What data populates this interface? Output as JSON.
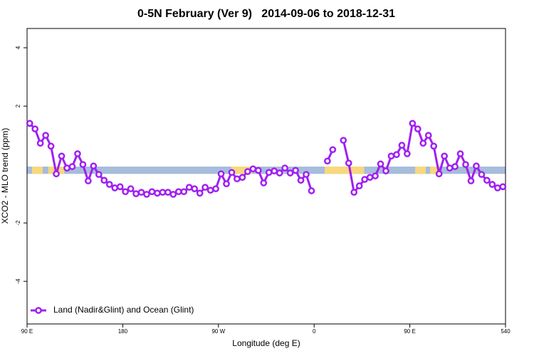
{
  "chart_data": {
    "type": "line",
    "title": "0-5N February (Ver 9)   2014-09-06 to 2018-12-31",
    "xlabel": "Longitude (deg E)",
    "ylabel": "XCO2 - MLO trend (ppm)",
    "xlim": [
      90,
      540
    ],
    "ylim": [
      -5.46,
      4.66
    ],
    "xticks": [
      {
        "value": 90,
        "label": "90 E"
      },
      180,
      {
        "value": 270,
        "label": "90 W"
      },
      {
        "value": 360,
        "label": "0"
      },
      {
        "value": 450,
        "label": "90 E"
      },
      540
    ],
    "yticks": [
      -4,
      -2,
      2,
      4
    ],
    "ocean_band": {
      "range": [
        -0.32,
        -0.07
      ],
      "color": "#a6bddb"
    },
    "land": {
      "color": "#f7d87c",
      "spans": [
        [
          94.7,
          104.7
        ],
        [
          110,
          125
        ],
        [
          282,
          302
        ],
        [
          370,
          407
        ],
        [
          455,
          465
        ],
        [
          469,
          476
        ]
      ]
    },
    "legend": "bottom-left",
    "x": [
      92.5,
      97.5,
      102.5,
      107.5,
      112.5,
      117.5,
      122.5,
      127.5,
      132.5,
      137.5,
      142.5,
      147.5,
      152.5,
      157.5,
      162.5,
      167.5,
      172.5,
      177.5,
      182.5,
      187.5,
      192.5,
      197.5,
      202.5,
      207.5,
      212.5,
      217.5,
      222.5,
      227.5,
      232.5,
      237.5,
      242.5,
      247.5,
      252.5,
      257.5,
      262.5,
      267.5,
      272.5,
      277.5,
      282.5,
      287.5,
      292.5,
      297.5,
      302.5,
      307.5,
      312.5,
      317.5,
      322.5,
      327.5,
      332.5,
      337.5,
      342.5,
      347.5,
      352.5,
      357.5,
      362.5,
      367.5,
      372.5,
      377.5,
      382.5,
      387.5,
      392.5,
      397.5,
      402.5,
      407.5,
      412.5,
      417.5,
      422.5,
      427.5,
      432.5,
      437.5,
      442.5,
      447.5,
      452.5,
      457.5,
      462.5,
      467.5,
      472.5,
      477.5,
      482.5,
      487.5,
      492.5,
      497.5,
      502.5,
      507.5,
      512.5,
      517.5,
      522.5,
      527.5,
      532.5,
      537.5
    ],
    "series": [
      {
        "name": "Land (Nadir&Glint) and Ocean (Glint)",
        "color": "#a020f0",
        "values": [
          1.41,
          1.22,
          0.73,
          1.0,
          0.63,
          -0.32,
          0.29,
          -0.12,
          -0.07,
          0.37,
          0,
          -0.56,
          -0.05,
          -0.34,
          -0.54,
          -0.68,
          -0.8,
          -0.76,
          -0.93,
          -0.83,
          -1.0,
          -0.95,
          -1.02,
          -0.93,
          -0.98,
          -0.95,
          -0.95,
          -1.02,
          -0.93,
          -0.93,
          -0.78,
          -0.83,
          -0.98,
          -0.78,
          -0.88,
          -0.83,
          -0.32,
          -0.66,
          -0.27,
          -0.49,
          -0.44,
          -0.24,
          -0.15,
          -0.2,
          -0.63,
          -0.27,
          -0.22,
          -0.29,
          -0.12,
          -0.29,
          -0.2,
          -0.54,
          -0.34,
          -0.9,
          null,
          null,
          0.12,
          0.51,
          null,
          0.83,
          0.05,
          -0.95,
          -0.73,
          -0.51,
          -0.44,
          -0.39,
          0.02,
          -0.22,
          0.29,
          0.34,
          0.66,
          0.37,
          1.41,
          1.22,
          0.73,
          1.0,
          0.63,
          -0.32,
          0.29,
          -0.12,
          -0.07,
          0.37,
          0,
          -0.56,
          -0.05,
          -0.34,
          -0.54,
          -0.68,
          -0.8,
          -0.76
        ]
      }
    ]
  }
}
